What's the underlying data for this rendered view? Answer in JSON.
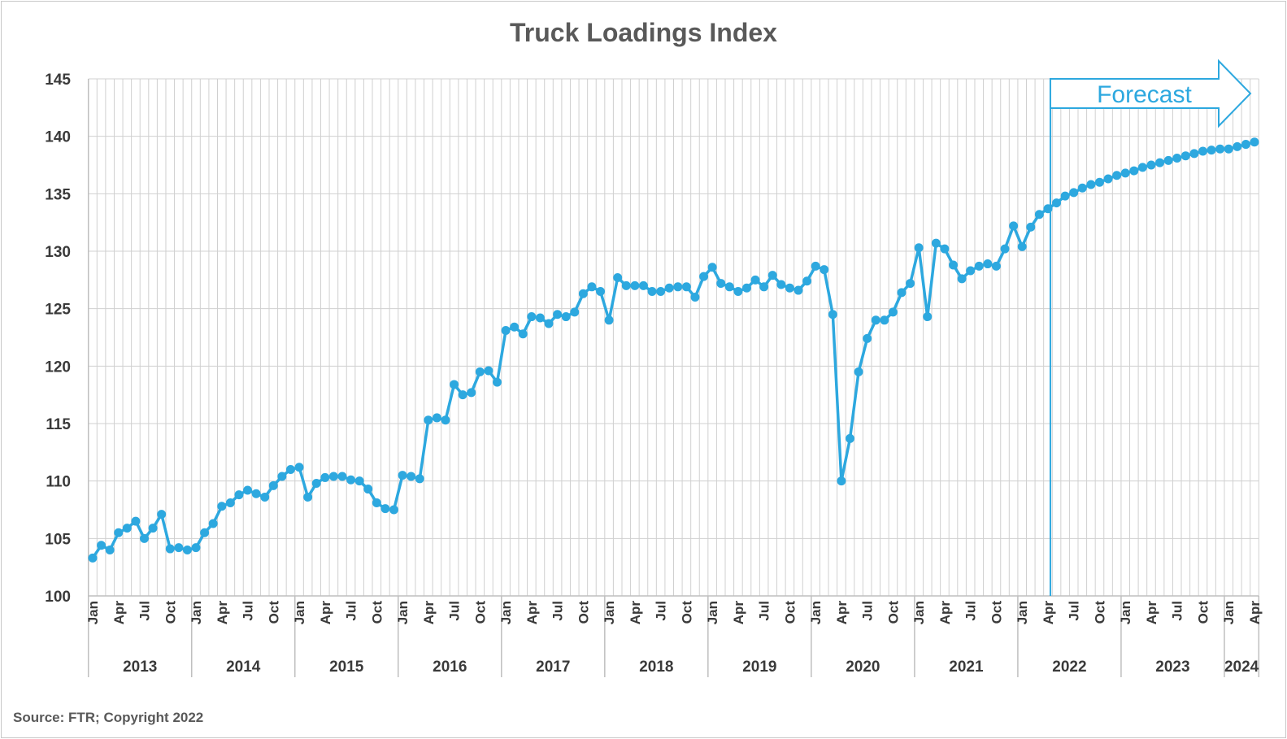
{
  "chart_data": {
    "type": "line",
    "title": "Truck Loadings Index",
    "source": "Source: FTR; Copyright 2022",
    "forecast_label": "Forecast",
    "forecast_start": "2022-04",
    "xlabel": "",
    "ylabel": "",
    "ylim": [
      100,
      145
    ],
    "yticks": [
      100,
      105,
      110,
      115,
      120,
      125,
      130,
      135,
      140,
      145
    ],
    "grid": "vertical gridlines per month, horizontal at y ticks",
    "legend": "none",
    "line_color": "#2da8df",
    "month_tick_labels": [
      "Jan",
      "Apr",
      "Jul",
      "Oct"
    ],
    "years": [
      "2013",
      "2014",
      "2015",
      "2016",
      "2017",
      "2018",
      "2019",
      "2020",
      "2021",
      "2022",
      "2023",
      "2024"
    ],
    "x_start": "2013-01",
    "x_end": "2024-04",
    "series": [
      {
        "values": [
          103.3,
          104.4,
          104.0,
          105.5,
          105.9,
          106.5,
          105.0,
          105.9,
          107.1,
          104.1,
          104.2,
          104.0,
          104.2,
          105.5,
          106.3,
          107.8,
          108.1,
          108.8,
          109.2,
          108.9,
          108.6,
          109.6,
          110.4,
          111.0,
          111.2,
          108.6,
          109.8,
          110.3,
          110.4,
          110.4,
          110.1,
          110.0,
          109.3,
          108.1,
          107.6,
          107.5,
          110.5,
          110.4,
          110.2,
          115.3,
          115.5,
          115.3,
          118.4,
          117.5,
          117.7,
          119.5,
          119.6,
          118.6,
          123.1,
          123.4,
          122.8,
          124.3,
          124.2,
          123.7,
          124.5,
          124.3,
          124.7,
          126.3,
          126.9,
          126.5,
          124.0,
          127.7,
          127.0,
          127.0,
          127.0,
          126.5,
          126.5,
          126.8,
          126.9,
          126.9,
          126.0,
          127.8,
          128.6,
          127.2,
          126.9,
          126.5,
          126.8,
          127.5,
          126.9,
          127.9,
          127.1,
          126.8,
          126.6,
          127.4,
          128.7,
          128.4,
          124.5,
          110.0,
          113.7,
          119.5,
          122.4,
          124.0,
          124.0,
          124.7,
          126.4,
          127.2,
          130.3,
          124.3,
          130.7,
          130.2,
          128.8,
          127.6,
          128.3,
          128.7,
          128.9,
          128.7,
          130.2,
          132.2,
          130.4,
          132.1,
          133.2,
          133.7,
          134.2,
          134.8,
          135.1,
          135.5,
          135.8,
          136.0,
          136.3,
          136.6,
          136.8,
          137.0,
          137.3,
          137.5,
          137.7,
          137.9,
          138.1,
          138.3,
          138.5,
          138.7,
          138.8,
          138.9,
          138.9,
          139.1,
          139.3,
          139.5
        ]
      }
    ]
  }
}
